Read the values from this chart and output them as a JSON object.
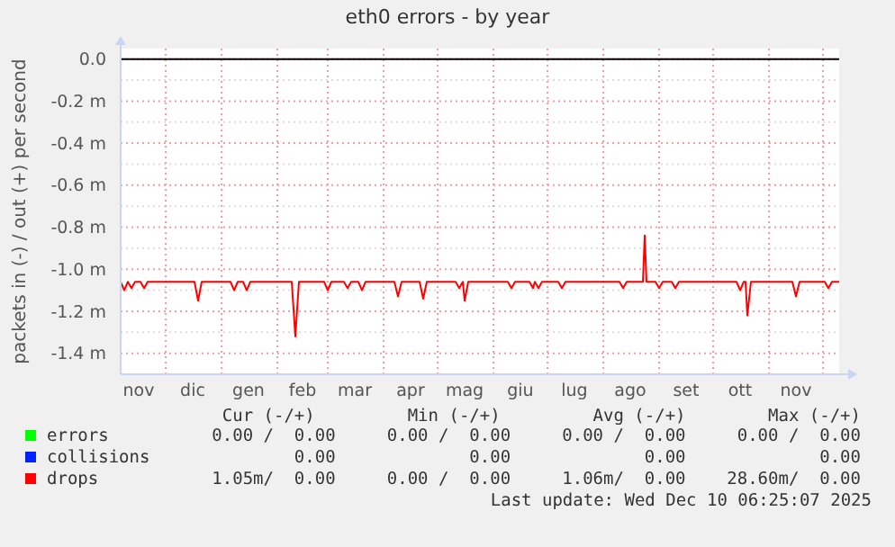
{
  "chart_data": {
    "type": "line",
    "title": "eth0 errors - by year",
    "ylabel": "packets in (-) / out (+) per second",
    "xlim": [
      "2024-11-06",
      "2025-12-10"
    ],
    "xticks": [
      {
        "value": "2024-11-16",
        "label": "nov"
      },
      {
        "value": "2024-12-01",
        "label": null
      },
      {
        "value": "2024-12-16",
        "label": "dic"
      },
      {
        "value": "2025-01-01",
        "label": null
      },
      {
        "value": "2025-01-16",
        "label": "gen"
      },
      {
        "value": "2025-02-01",
        "label": null
      },
      {
        "value": "2025-02-15",
        "label": "feb"
      },
      {
        "value": "2025-03-01",
        "label": null
      },
      {
        "value": "2025-03-16",
        "label": "mar"
      },
      {
        "value": "2025-04-01",
        "label": null
      },
      {
        "value": "2025-04-16",
        "label": "apr"
      },
      {
        "value": "2025-05-01",
        "label": null
      },
      {
        "value": "2025-05-16",
        "label": "mag"
      },
      {
        "value": "2025-06-01",
        "label": null
      },
      {
        "value": "2025-06-16",
        "label": "giu"
      },
      {
        "value": "2025-07-01",
        "label": null
      },
      {
        "value": "2025-07-16",
        "label": "lug"
      },
      {
        "value": "2025-08-01",
        "label": null
      },
      {
        "value": "2025-08-16",
        "label": "ago"
      },
      {
        "value": "2025-09-01",
        "label": null
      },
      {
        "value": "2025-09-16",
        "label": "set"
      },
      {
        "value": "2025-10-01",
        "label": null
      },
      {
        "value": "2025-10-16",
        "label": "ott"
      },
      {
        "value": "2025-11-01",
        "label": null
      },
      {
        "value": "2025-11-16",
        "label": "nov"
      },
      {
        "value": "2025-12-01",
        "label": null
      }
    ],
    "ylim": [
      -1.5,
      0.05
    ],
    "yticks": [
      {
        "value": 0,
        "label": "0.0"
      },
      {
        "value": -0.1,
        "label": null
      },
      {
        "value": -0.2,
        "label": "-0.2 m"
      },
      {
        "value": -0.3,
        "label": null
      },
      {
        "value": -0.4,
        "label": "-0.4 m"
      },
      {
        "value": -0.5,
        "label": null
      },
      {
        "value": -0.6,
        "label": "-0.6 m"
      },
      {
        "value": -0.7,
        "label": null
      },
      {
        "value": -0.8,
        "label": "-0.8 m"
      },
      {
        "value": -0.9,
        "label": null
      },
      {
        "value": -1.0,
        "label": "-1.0 m"
      },
      {
        "value": -1.1,
        "label": null
      },
      {
        "value": -1.2,
        "label": "-1.2 m"
      },
      {
        "value": -1.3,
        "label": null
      },
      {
        "value": -1.4,
        "label": "-1.4 m"
      },
      {
        "value": -1.5,
        "label": null
      }
    ],
    "grid": true,
    "legend": "bottom left",
    "line_style": "solid",
    "ref_lines": [
      {
        "axis": "y",
        "value": 0,
        "color": "#000000"
      }
    ],
    "series": [
      {
        "name": "errors",
        "color": "#00ff00"
      },
      {
        "name": "collisions",
        "color": "#0022ff"
      },
      {
        "name": "drops",
        "color": "#ff0000",
        "x": [
          "2024-11-06",
          "2024-11-08",
          "2024-11-10",
          "2024-11-12",
          "2024-11-14",
          "2024-11-17",
          "2024-11-19",
          "2024-11-21",
          "2024-12-17",
          "2024-12-19",
          "2024-12-21",
          "2025-01-06",
          "2025-01-08",
          "2025-01-10",
          "2025-01-13",
          "2025-01-15",
          "2025-01-17",
          "2025-02-09",
          "2025-02-11",
          "2025-02-13",
          "2025-02-27",
          "2025-03-01",
          "2025-03-03",
          "2025-03-10",
          "2025-03-12",
          "2025-03-14",
          "2025-03-18",
          "2025-03-20",
          "2025-03-22",
          "2025-04-07",
          "2025-04-09",
          "2025-04-11",
          "2025-04-21",
          "2025-04-23",
          "2025-04-25",
          "2025-05-11",
          "2025-05-13",
          "2025-05-15",
          "2025-05-16",
          "2025-05-18",
          "2025-06-09",
          "2025-06-11",
          "2025-06-13",
          "2025-06-21",
          "2025-06-23",
          "2025-06-24",
          "2025-06-26",
          "2025-06-28",
          "2025-07-07",
          "2025-07-09",
          "2025-07-11",
          "2025-08-10",
          "2025-08-12",
          "2025-08-14",
          "2025-08-23",
          "2025-08-24",
          "2025-08-25",
          "2025-08-30",
          "2025-09-01",
          "2025-09-03",
          "2025-09-08",
          "2025-09-10",
          "2025-09-12",
          "2025-10-14",
          "2025-10-16",
          "2025-10-18",
          "2025-10-19",
          "2025-10-20",
          "2025-10-22",
          "2025-11-14",
          "2025-11-16",
          "2025-11-18",
          "2025-12-02",
          "2025-12-04",
          "2025-12-06",
          "2025-12-10"
        ],
        "values": [
          -1.06,
          -1.1,
          -1.06,
          -1.09,
          -1.06,
          -1.06,
          -1.09,
          -1.06,
          -1.06,
          -1.15,
          -1.06,
          -1.06,
          -1.1,
          -1.06,
          -1.06,
          -1.1,
          -1.06,
          -1.06,
          -1.32,
          -1.06,
          -1.06,
          -1.1,
          -1.06,
          -1.06,
          -1.09,
          -1.06,
          -1.06,
          -1.1,
          -1.06,
          -1.06,
          -1.13,
          -1.06,
          -1.06,
          -1.14,
          -1.06,
          -1.06,
          -1.09,
          -1.06,
          -1.15,
          -1.06,
          -1.06,
          -1.09,
          -1.06,
          -1.06,
          -1.09,
          -1.06,
          -1.09,
          -1.06,
          -1.06,
          -1.09,
          -1.06,
          -1.06,
          -1.09,
          -1.06,
          -1.06,
          -0.84,
          -1.06,
          -1.06,
          -1.09,
          -1.06,
          -1.06,
          -1.09,
          -1.06,
          -1.06,
          -1.1,
          -1.06,
          -1.06,
          -1.22,
          -1.06,
          -1.06,
          -1.13,
          -1.06,
          -1.06,
          -1.09,
          -1.06,
          -1.06
        ]
      }
    ],
    "annotations": [
      " Cur (-/+)         Min (-/+)         Avg (-/+)        Max (-/+)",
      "0.00 /  0.00     0.00 /  0.00     0.00 /  0.00     0.00 /  0.00",
      "        0.00             0.00             0.00             0.00",
      "1.05m/  0.00     0.00 /  0.00     1.06m/  0.00    28.60m/  0.00",
      "Last update: Wed Dec 10 06:25:07 2025"
    ]
  }
}
